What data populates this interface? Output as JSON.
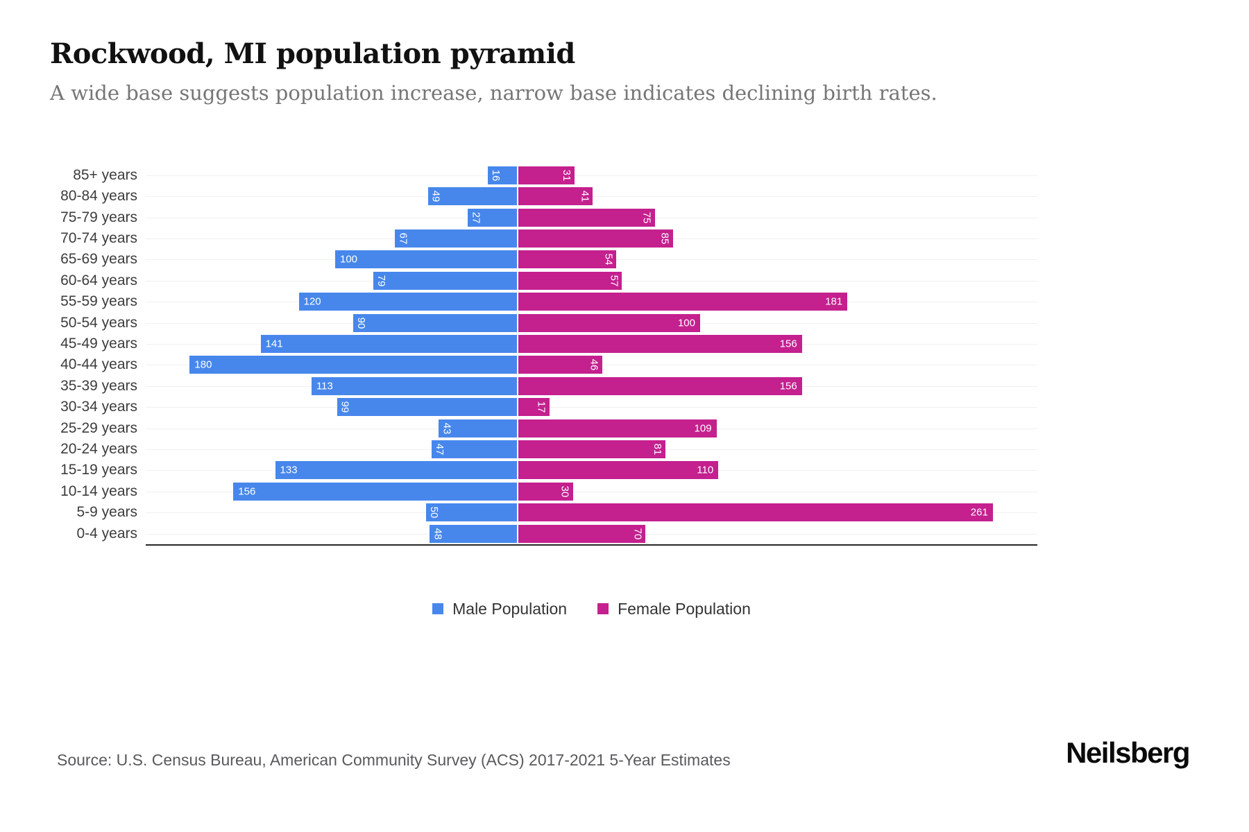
{
  "title": "Rockwood, MI population pyramid",
  "subtitle": "A wide base suggests population increase, narrow base indicates declining birth rates.",
  "source": "Source: U.S. Census Bureau, American Community Survey (ACS) 2017-2021 5-Year Estimates",
  "brand": "Neilsberg",
  "legend": {
    "male_label": "Male Population",
    "female_label": "Female Population",
    "male_color": "#4787EC",
    "female_color": "#C4208E"
  },
  "colors": {
    "male_bar": "#4787EC",
    "female_bar": "#C4208E",
    "gridline": "#F0F0F0",
    "axis_line": "#262626",
    "bar_value_text": "#FFFFFF"
  },
  "chart_data": {
    "type": "bar",
    "subtype": "population-pyramid",
    "orientation": "horizontal",
    "grid": "light horizontal line per age row",
    "legend_position": "bottom-center",
    "value_labels": "inside bar ends; values under 100 rotated 90deg, 100+ horizontal",
    "categories": [
      "85+ years",
      "80-84 years",
      "75-79 years",
      "70-74 years",
      "65-69 years",
      "60-64 years",
      "55-59 years",
      "50-54 years",
      "45-49 years",
      "40-44 years",
      "35-39 years",
      "30-34 years",
      "25-29 years",
      "20-24 years",
      "15-19 years",
      "10-14 years",
      "5-9 years",
      "0-4 years"
    ],
    "series": [
      {
        "name": "Male Population",
        "side": "left",
        "color": "#4787EC",
        "values": [
          16,
          49,
          27,
          67,
          100,
          79,
          120,
          90,
          141,
          180,
          113,
          99,
          43,
          47,
          133,
          156,
          50,
          48
        ]
      },
      {
        "name": "Female Population",
        "side": "right",
        "color": "#C4208E",
        "values": [
          31,
          41,
          75,
          85,
          54,
          57,
          181,
          100,
          156,
          46,
          156,
          17,
          109,
          81,
          110,
          30,
          261,
          70
        ]
      }
    ],
    "male_axis_max": 205,
    "female_axis_max": 286,
    "xlabel": "",
    "ylabel": ""
  }
}
